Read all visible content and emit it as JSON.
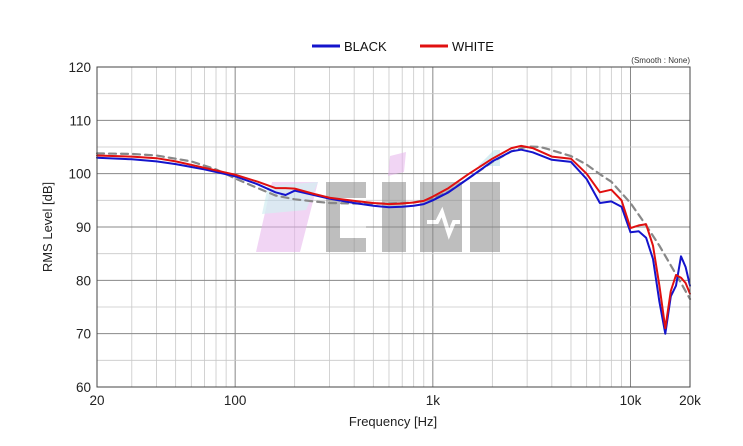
{
  "chart_data": {
    "type": "line",
    "xlabel": "Frequency [Hz]",
    "ylabel": "RMS Level [dB]",
    "x_scale": "log",
    "xlim": [
      20,
      20000
    ],
    "ylim": [
      60,
      120
    ],
    "x_ticks": [
      {
        "value": 20,
        "label": "20"
      },
      {
        "value": 100,
        "label": "100"
      },
      {
        "value": 1000,
        "label": "1k"
      },
      {
        "value": 10000,
        "label": "10k"
      },
      {
        "value": 20000,
        "label": "20k"
      }
    ],
    "y_ticks": [
      {
        "value": 60,
        "label": "60"
      },
      {
        "value": 70,
        "label": "70"
      },
      {
        "value": 80,
        "label": "80"
      },
      {
        "value": 90,
        "label": "90"
      },
      {
        "value": 100,
        "label": "100"
      },
      {
        "value": 110,
        "label": "110"
      },
      {
        "value": 120,
        "label": "120"
      }
    ],
    "grid": true,
    "legend_position": "top-center",
    "smooth_note": "(Smooth : None)",
    "logo_text": "AP",
    "watermark_text": "CIHI",
    "series": [
      {
        "name": "BLACK",
        "color": "#1414cc",
        "dashed": false,
        "x": [
          20,
          30,
          40,
          50,
          70,
          100,
          130,
          160,
          180,
          200,
          250,
          300,
          400,
          500,
          600,
          700,
          800,
          900,
          1000,
          1200,
          1500,
          2000,
          2500,
          2800,
          3200,
          4000,
          5000,
          6000,
          7000,
          8000,
          9000,
          10000,
          11000,
          12000,
          13000,
          14000,
          15000,
          16000,
          17000,
          18000,
          19000,
          20000
        ],
        "y": [
          103,
          102.7,
          102.3,
          101.8,
          100.8,
          99.5,
          98,
          96.5,
          96,
          96.8,
          96,
          95.3,
          94.5,
          94,
          93.7,
          93.8,
          94,
          94.3,
          95,
          96.5,
          99,
          102.3,
          104.2,
          104.5,
          104,
          102.6,
          102.2,
          99,
          94.5,
          94.8,
          93.8,
          89,
          89.2,
          88,
          84,
          76,
          70,
          77,
          79,
          84.5,
          82.5,
          79
        ]
      },
      {
        "name": "WHITE",
        "color": "#e01010",
        "dashed": false,
        "x": [
          20,
          30,
          40,
          50,
          70,
          100,
          130,
          160,
          180,
          200,
          250,
          300,
          400,
          500,
          600,
          700,
          800,
          900,
          1000,
          1200,
          1500,
          2000,
          2500,
          2800,
          3200,
          4000,
          5000,
          6000,
          7000,
          8000,
          9000,
          10000,
          11000,
          12000,
          13000,
          14000,
          15000,
          16000,
          17000,
          18000,
          19000,
          20000
        ],
        "y": [
          103.4,
          103.2,
          102.9,
          102.3,
          101.1,
          99.8,
          98.5,
          97.3,
          97.3,
          97.2,
          96.2,
          95.5,
          94.9,
          94.5,
          94.3,
          94.4,
          94.6,
          94.9,
          95.7,
          97.3,
          99.8,
          102.8,
          104.8,
          105.2,
          104.8,
          103.2,
          102.8,
          100,
          96.5,
          97,
          95,
          89.8,
          90.3,
          90.5,
          86.5,
          79,
          71,
          78,
          81,
          80.5,
          79.5,
          77.5
        ]
      },
      {
        "name": "",
        "color": "#888888",
        "dashed": true,
        "x": [
          20,
          30,
          40,
          60,
          80,
          100,
          130,
          160,
          200,
          250,
          300,
          400,
          500,
          600,
          700,
          800,
          1000,
          1200,
          1500,
          2000,
          2500,
          3000,
          3500,
          4000,
          5000,
          6000,
          7000,
          8000,
          10000,
          12000,
          14000,
          16000,
          18000,
          20000
        ],
        "y": [
          103.8,
          103.7,
          103.4,
          102.3,
          100.8,
          99.1,
          97.3,
          95.9,
          95.2,
          94.8,
          94.5,
          94.4,
          94.4,
          94.4,
          94.5,
          94.6,
          95.3,
          96.6,
          99,
          102.2,
          104.2,
          105.1,
          105,
          104.4,
          103.3,
          101.7,
          99.9,
          98.5,
          94.5,
          90.3,
          86.5,
          82.8,
          79.5,
          76.5
        ]
      }
    ]
  }
}
